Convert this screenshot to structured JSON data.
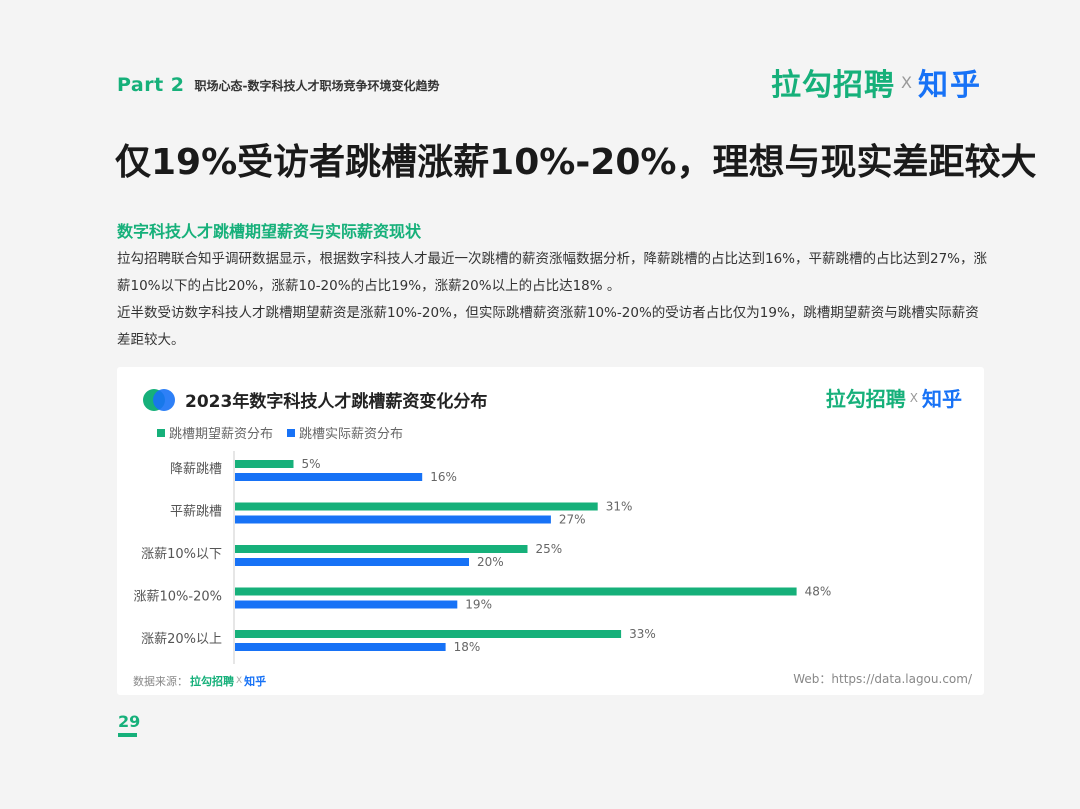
{
  "header": {
    "part": "Part 2",
    "part_subtitle": "职场心态-数字科技人才职场竞争环境变化趋势",
    "brand_lagou": "拉勾招聘",
    "brand_x": "X",
    "brand_zhihu": "知乎"
  },
  "title": "仅19%受访者跳槽涨薪10%-20%，理想与现实差距较大",
  "subtitle": "数字科技人才跳槽期望薪资与实际薪资现状",
  "paragraphs": [
    "拉勾招聘联合知乎调研数据显示，根据数字科技人才最近一次跳槽的薪资涨幅数据分析，降薪跳槽的占比达到16%，平薪跳槽的占比达到27%，涨薪10%以下的占比20%，涨薪10-20%的占比19%，涨薪20%以上的占比达18% 。",
    "近半数受访数字科技人才跳槽期望薪资是涨薪10%-20%，但实际跳槽薪资涨薪10%-20%的受访者占比仅为19%，跳槽期望薪资与跳槽实际薪资差距较大。"
  ],
  "card": {
    "title": "2023年数字科技人才跳槽薪资变化分布",
    "brand_lagou": "拉勾招聘",
    "brand_x": "X",
    "brand_zhihu": "知乎",
    "source_label": "数据来源：",
    "source_lagou": "拉勾招聘",
    "source_x": "X",
    "source_zhihu": "知乎",
    "web": "Web：https://data.lagou.com/"
  },
  "colors": {
    "expected": "#16b07a",
    "actual": "#1772f6"
  },
  "chart_data": {
    "type": "bar",
    "orientation": "horizontal",
    "categories": [
      "降薪跳槽",
      "平薪跳槽",
      "涨薪10%以下",
      "涨薪10%-20%",
      "涨薪20%以上"
    ],
    "series": [
      {
        "name": "跳槽期望薪资分布",
        "values": [
          5,
          31,
          25,
          48,
          33
        ],
        "labels": [
          "5%",
          "31%",
          "25%",
          "48%",
          "33%"
        ]
      },
      {
        "name": "跳槽实际薪资分布",
        "values": [
          16,
          27,
          20,
          19,
          18
        ],
        "labels": [
          "16%",
          "27%",
          "20%",
          "19%",
          "18%"
        ]
      }
    ],
    "unit": "%",
    "xlim": [
      0,
      50
    ],
    "legend_position": "top-left",
    "grid": false
  },
  "page_number": "29"
}
